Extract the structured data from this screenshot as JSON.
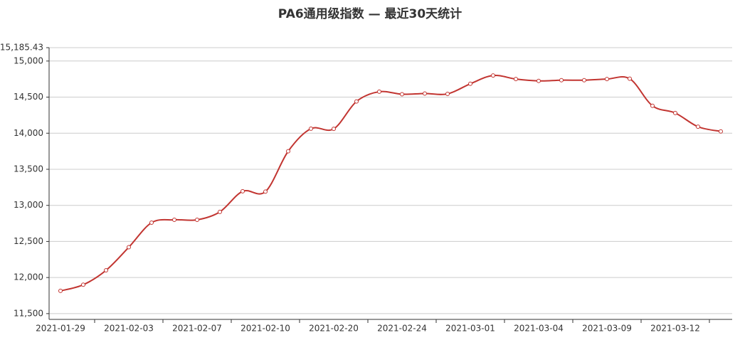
{
  "chart_data": {
    "type": "line",
    "title": "PA6通用级指数  —  最近30天统计",
    "categories": [
      "2021-01-29",
      null,
      null,
      "2021-02-03",
      null,
      null,
      "2021-02-07",
      null,
      null,
      "2021-02-10",
      null,
      null,
      "2021-02-20",
      null,
      null,
      "2021-02-24",
      null,
      null,
      "2021-03-01",
      null,
      null,
      "2021-03-04",
      null,
      null,
      "2021-03-09",
      null,
      null,
      "2021-03-12",
      null,
      null
    ],
    "series": [
      {
        "color": "#c23531",
        "values": [
          11815,
          11900,
          12100,
          12420,
          12760,
          12800,
          12800,
          12910,
          13195,
          13190,
          13750,
          14063,
          14060,
          14440,
          14575,
          14540,
          14550,
          14545,
          14685,
          14800,
          14750,
          14725,
          14735,
          14735,
          14750,
          14755,
          14380,
          14280,
          14090,
          14025
        ]
      }
    ],
    "ylim": [
      11420,
      15185.43
    ],
    "yticks": [
      {
        "value": 11500,
        "label": "11,500"
      },
      {
        "value": 12000,
        "label": "12,000"
      },
      {
        "value": 12500,
        "label": "12,500"
      },
      {
        "value": 13000,
        "label": "13,000"
      },
      {
        "value": 13500,
        "label": "13,500"
      },
      {
        "value": 14000,
        "label": "14,000"
      },
      {
        "value": 14500,
        "label": "14,500"
      },
      {
        "value": 15000,
        "label": "15,000"
      },
      {
        "value": 15185.43,
        "label": "15,185.43"
      }
    ],
    "grid": true
  }
}
